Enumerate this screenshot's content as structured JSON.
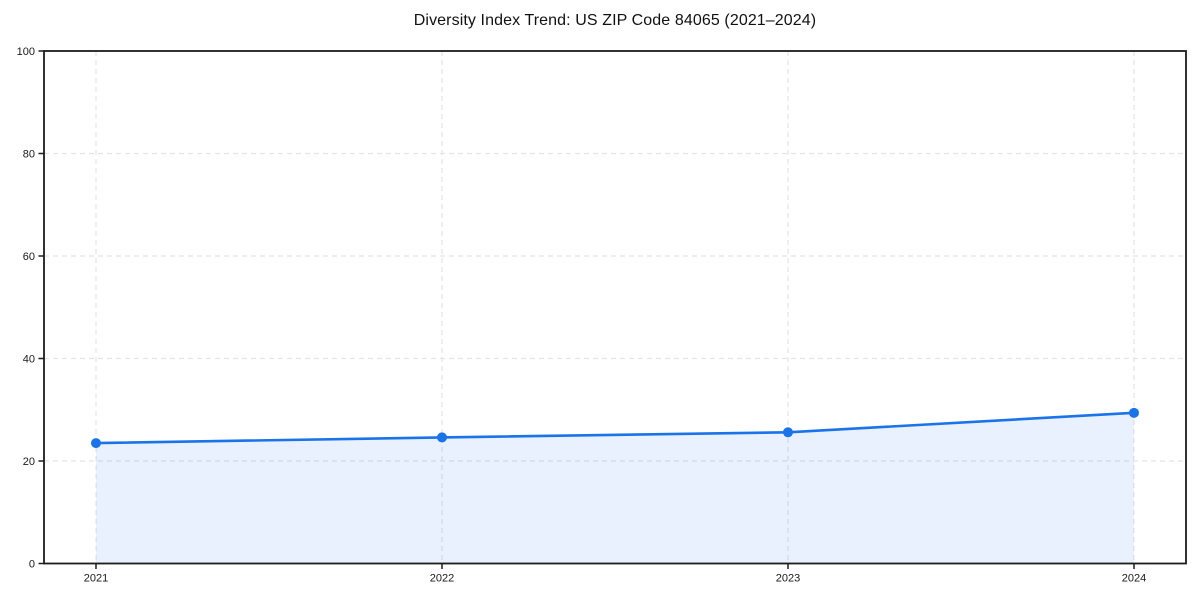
{
  "chart_data": {
    "type": "area",
    "title": "Diversity Index Trend: US ZIP Code 84065 (2021–2024)",
    "x": [
      "2021",
      "2022",
      "2023",
      "2024"
    ],
    "series": [
      {
        "name": "Diversity Index",
        "values": [
          23.5,
          24.6,
          25.6,
          29.4
        ]
      }
    ],
    "xlabel": "",
    "ylabel": "",
    "ylim": [
      0,
      100
    ],
    "yticks": [
      0,
      20,
      40,
      60,
      80,
      100
    ],
    "grid": "dashed-both-axes",
    "legend_position": "none",
    "colors": {
      "line": "#1a73e8",
      "marker": "#1a73e8",
      "area_fill": "rgba(26,115,232,0.10)",
      "gridline": "#e4e4e4",
      "spine": "#1c1c1c",
      "tick_label": "#1a1a1a",
      "title_text": "#111111",
      "background": "#ffffff"
    }
  }
}
